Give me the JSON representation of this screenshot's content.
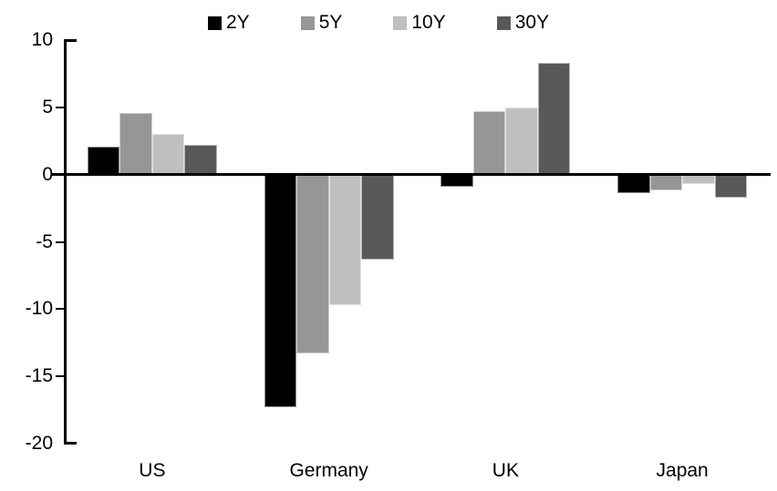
{
  "chart_data": {
    "type": "bar",
    "title": "",
    "categories": [
      "US",
      "Germany",
      "UK",
      "Japan"
    ],
    "series": [
      {
        "name": "2Y",
        "color": "#000000",
        "values": [
          2.1,
          -17.3,
          -0.9,
          -1.4
        ]
      },
      {
        "name": "5Y",
        "color": "#969696",
        "values": [
          4.6,
          -13.3,
          4.7,
          -1.2
        ]
      },
      {
        "name": "10Y",
        "color": "#bfbfbf",
        "values": [
          3.0,
          -9.7,
          5.0,
          -0.7
        ]
      },
      {
        "name": "30Y",
        "color": "#595959",
        "values": [
          2.2,
          -6.3,
          8.3,
          -1.7
        ]
      }
    ],
    "ylim": [
      -20,
      10
    ],
    "yticks": [
      10,
      5,
      0,
      -5,
      -10,
      -15,
      -20
    ],
    "grid": false,
    "legend_position": "top",
    "axis_color": "#000000",
    "background": "#ffffff"
  }
}
